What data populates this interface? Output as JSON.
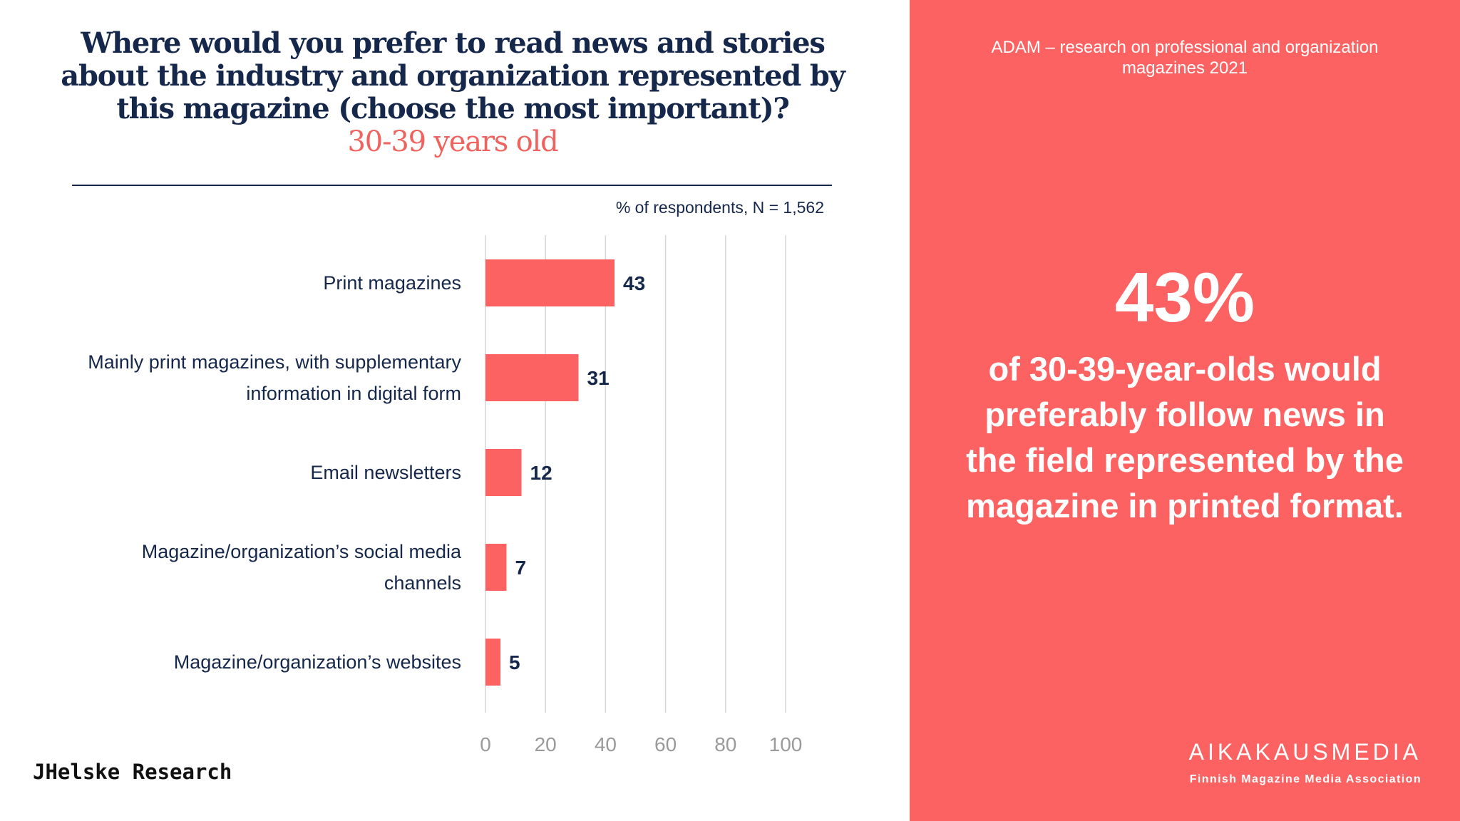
{
  "header": {
    "title": "Where would you prefer to read news and stories about the industry and organization represented by this magazine (choose the most important)?",
    "subtitle": "30-39 years old",
    "note": "% of respondents, N = 1,562"
  },
  "chart_data": {
    "type": "bar",
    "orientation": "horizontal",
    "categories": [
      "Print magazines",
      "Mainly print magazines, with supplementary information in digital form",
      "Email newsletters",
      "Magazine/organization’s social media channels",
      "Magazine/organization’s websites"
    ],
    "values": [
      43,
      31,
      12,
      7,
      5
    ],
    "xlim": [
      0,
      100
    ],
    "xticks": [
      0,
      20,
      40,
      60,
      80,
      100
    ],
    "grid": true,
    "bar_color": "#fd6262"
  },
  "colors": {
    "navy": "#15274a",
    "coral": "#fd6262",
    "subtitle": "#f0625e"
  },
  "footer": {
    "brand_left": "JHelske Research"
  },
  "panel": {
    "source": "ADAM – research on professional and organization magazines 2021",
    "highlight": "43%",
    "statement": "of 30-39-year-olds would preferably follow news in the field represented by the magazine in printed format.",
    "brand_name": "AIKAKAUSMEDIA",
    "brand_tag": "Finnish Magazine Media Association"
  }
}
